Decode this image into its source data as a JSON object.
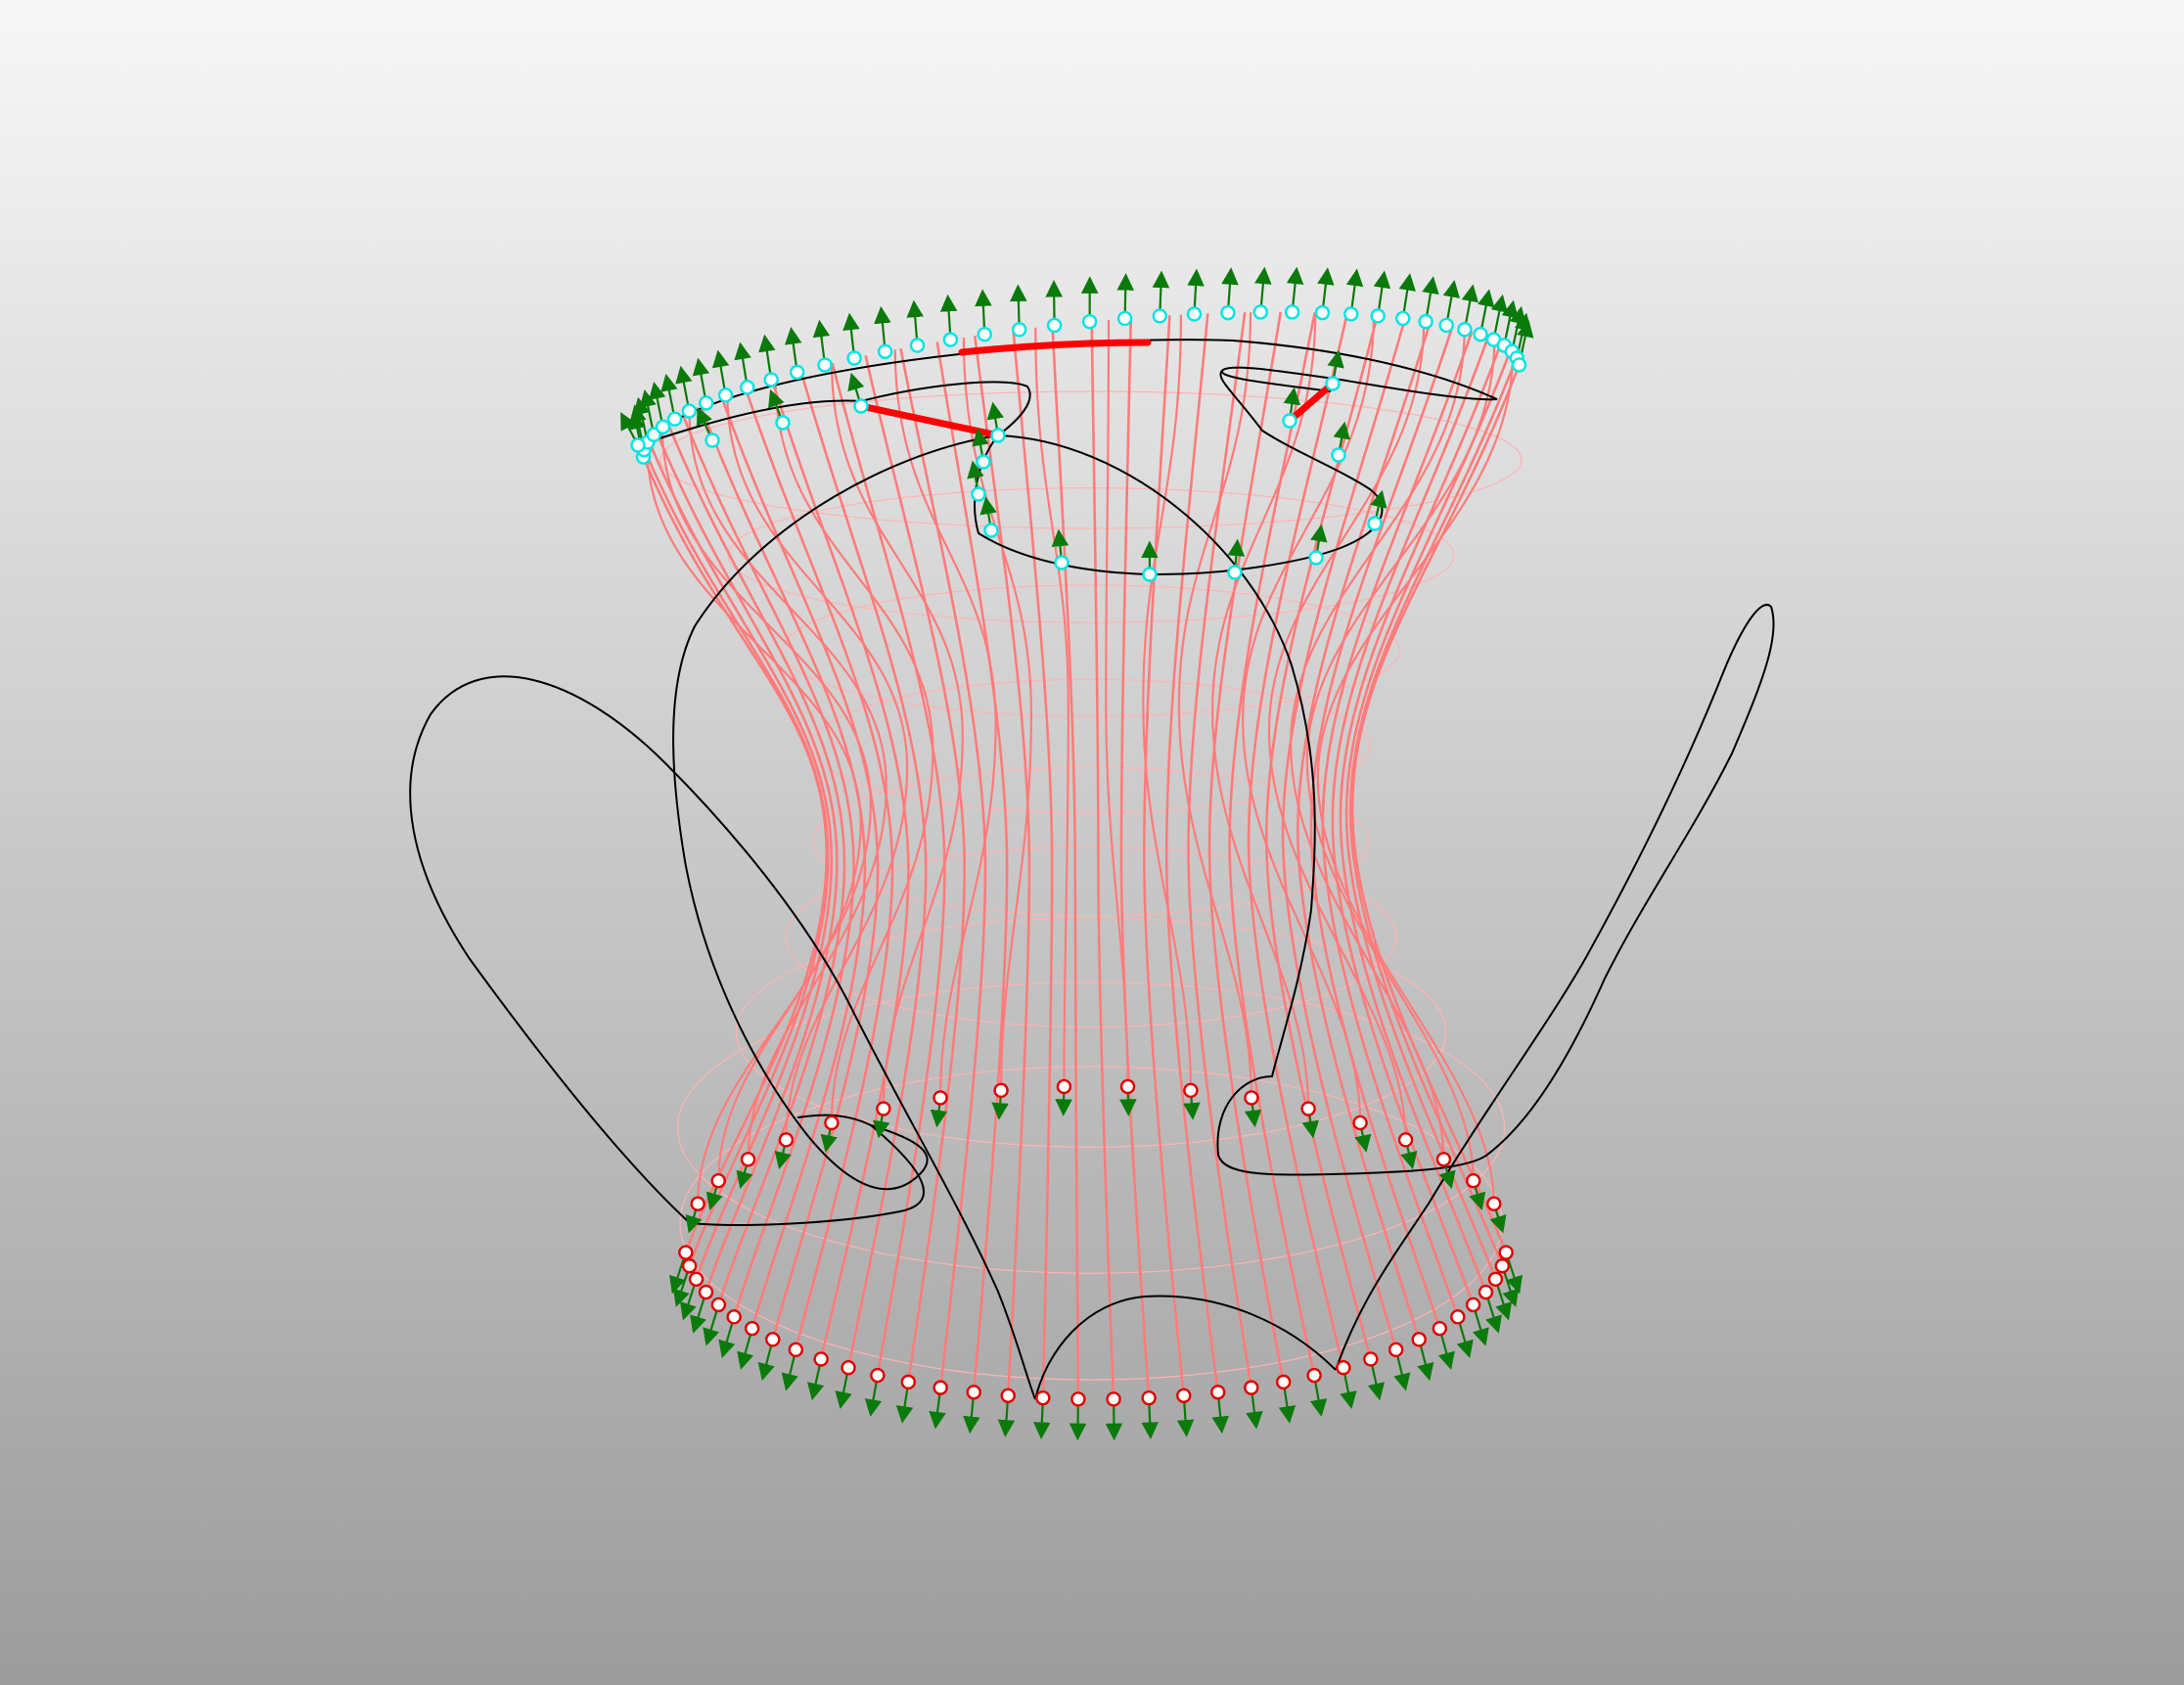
{
  "viewport": {
    "background_top": "#f7f7f7",
    "background_bottom": "#9c9c9c"
  },
  "colors": {
    "curve": "#000000",
    "loft_line": "#ff7b7b",
    "highlight_edge": "#ff0000",
    "rib": "#ffb3b3",
    "normal_arrow": "#0a7a0a",
    "top_point": "#00e5e5",
    "bottom_point": "#e00000"
  },
  "markers": {
    "top_ring_points": 40,
    "bottom_ring_points": 36,
    "top_point_icon": "cyan-control-point-icon",
    "bottom_point_icon": "red-control-point-icon",
    "arrow_icon": "normal-arrow-icon"
  }
}
